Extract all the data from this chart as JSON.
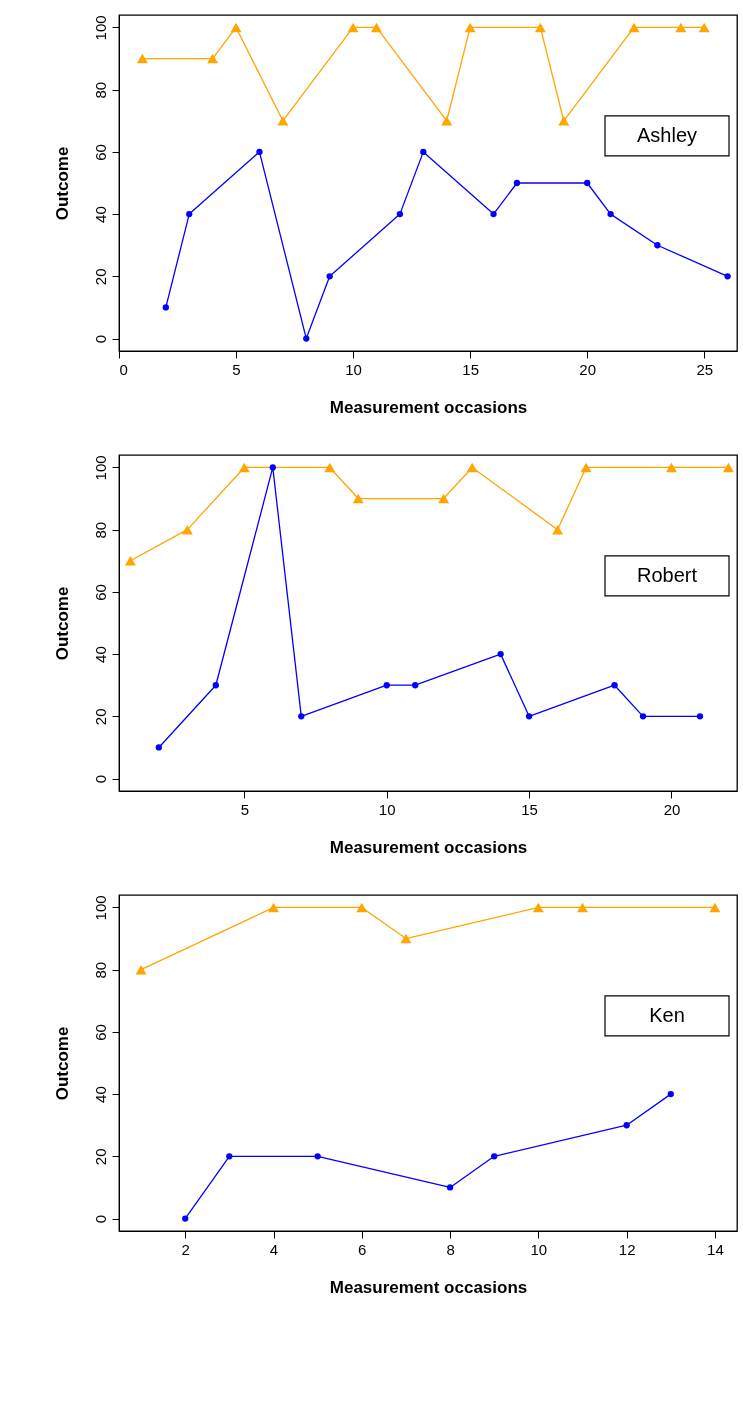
{
  "chart_data": [
    {
      "type": "line",
      "xlabel": "Measurement occasions",
      "ylabel": "Outcome",
      "xlim": [
        0,
        26.4
      ],
      "xticks": [
        0,
        5,
        10,
        15,
        20,
        25
      ],
      "ylim": [
        -4,
        104
      ],
      "yticks": [
        0,
        20,
        40,
        60,
        80,
        100
      ],
      "annotations": [
        "Ashley"
      ],
      "series": [
        {
          "color": "#ffa500",
          "marker": "triangle",
          "x": [
            1,
            4,
            5,
            7,
            10,
            11,
            14,
            15,
            18,
            19,
            22,
            24,
            25
          ],
          "values": [
            90,
            90,
            100,
            70,
            100,
            100,
            70,
            100,
            100,
            70,
            100,
            100,
            100
          ]
        },
        {
          "color": "#0000ff",
          "marker": "circle",
          "x": [
            2,
            3,
            6,
            8,
            9,
            12,
            13,
            16,
            17,
            20,
            21,
            23,
            26
          ],
          "values": [
            10,
            40,
            60,
            0,
            20,
            40,
            60,
            40,
            50,
            50,
            40,
            30,
            20
          ]
        }
      ]
    },
    {
      "type": "line",
      "xlabel": "Measurement occasions",
      "ylabel": "Outcome",
      "xlim": [
        0.6,
        22.3
      ],
      "xticks": [
        5,
        10,
        15,
        20
      ],
      "ylim": [
        -4,
        104
      ],
      "yticks": [
        0,
        20,
        40,
        60,
        80,
        100
      ],
      "annotations": [
        "Robert"
      ],
      "series": [
        {
          "color": "#ffa500",
          "marker": "triangle",
          "x": [
            1,
            3,
            5,
            8,
            9,
            12,
            13,
            16,
            17,
            20,
            22
          ],
          "values": [
            70,
            80,
            100,
            100,
            90,
            90,
            100,
            80,
            100,
            100,
            100
          ]
        },
        {
          "color": "#0000ff",
          "marker": "circle",
          "x": [
            2,
            4,
            6,
            7,
            10,
            11,
            14,
            15,
            18,
            19,
            21
          ],
          "values": [
            10,
            30,
            100,
            20,
            30,
            30,
            40,
            20,
            30,
            20,
            20
          ]
        }
      ]
    },
    {
      "type": "line",
      "xlabel": "Measurement occasions",
      "ylabel": "Outcome",
      "xlim": [
        0.5,
        14.5
      ],
      "xticks": [
        2,
        4,
        6,
        8,
        10,
        12,
        14
      ],
      "ylim": [
        -4,
        104
      ],
      "yticks": [
        0,
        20,
        40,
        60,
        80,
        100
      ],
      "annotations": [
        "Ken"
      ],
      "series": [
        {
          "color": "#ffa500",
          "marker": "triangle",
          "x": [
            1,
            4,
            6,
            7,
            10,
            11,
            14
          ],
          "values": [
            80,
            100,
            100,
            90,
            100,
            100,
            100
          ]
        },
        {
          "color": "#0000ff",
          "marker": "circle",
          "x": [
            2,
            3,
            5,
            8,
            9,
            12,
            13
          ],
          "values": [
            0,
            20,
            20,
            10,
            20,
            30,
            40
          ]
        }
      ]
    }
  ]
}
